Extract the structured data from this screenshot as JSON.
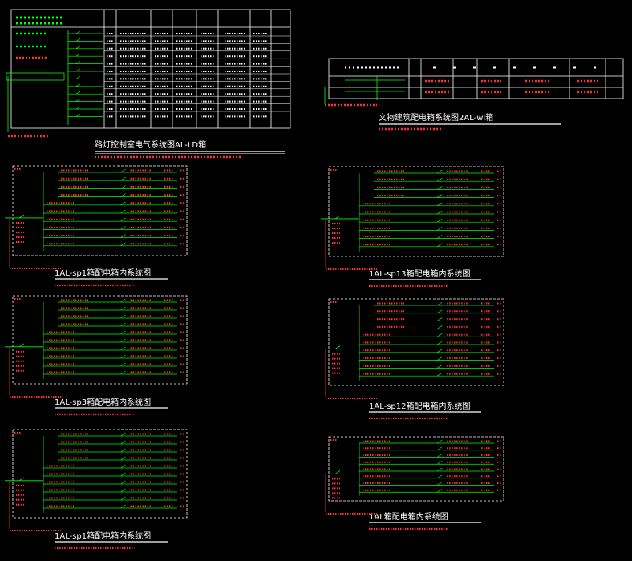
{
  "colors": {
    "background": "#000000",
    "frame": "#ffffff",
    "circuit_line": "#00ff00",
    "annotation": "#ff2020",
    "title_text": "#ffffff"
  },
  "diagrams": {
    "ld": {
      "title": "路灯控制室电气系统图AL-LD箱"
    },
    "wl": {
      "title": "文物建筑配电箱系统图2AL-wl箱"
    },
    "sp1a": {
      "title": "1AL-sp1箱配电箱内系统图"
    },
    "sp13": {
      "title": "1AL-sp13箱配电箱内系统图"
    },
    "sp3": {
      "title": "1AL-sp3箱配电箱内系统图"
    },
    "sp12": {
      "title": "1AL-sp12箱配电箱内系统图"
    },
    "sp1b": {
      "title": "1AL-sp1箱配电箱内系统图"
    },
    "al": {
      "title": "1AL箱配电箱内系统图"
    }
  }
}
